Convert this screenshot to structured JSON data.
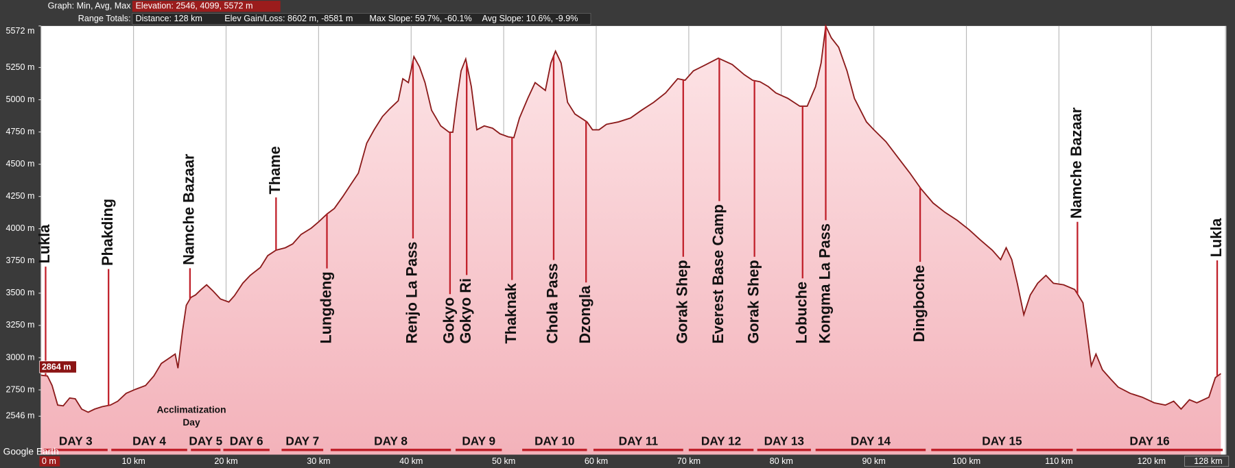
{
  "chart_data": {
    "type": "area",
    "graph_label": "Graph: Min, Avg, Max",
    "stats": "Elevation: 2546, 4099, 5572 m",
    "range_label": "Range Totals:",
    "range_totals": [
      "Distance: 128 km",
      "Elev Gain/Loss: 8602 m, -8581 m",
      "Max Slope: 59.7%, -60.1%",
      "Avg Slope: 10.6%, -9.9%"
    ],
    "readout": "2864 m",
    "watermark": "Google Earth",
    "note": "Acclimatization Day",
    "color": "#8b1a1a",
    "grid": "x",
    "x": [
      0.0,
      0.7,
      1.2,
      1.8,
      2.4,
      3.1,
      3.7,
      4.4,
      5.1,
      5.8,
      6.6,
      7.5,
      8.3,
      9.2,
      10.2,
      11.3,
      12.2,
      13.0,
      13.9,
      14.5,
      14.8,
      15.3,
      15.7,
      16.2,
      16.7,
      17.3,
      17.9,
      18.6,
      19.4,
      20.3,
      20.9,
      21.8,
      22.6,
      23.7,
      24.5,
      25.4,
      26.4,
      27.2,
      28.1,
      29.2,
      30.0,
      30.9,
      31.7,
      32.6,
      33.4,
      34.3,
      35.2,
      36.0,
      36.9,
      37.7,
      38.6,
      39.1,
      39.7,
      40.3,
      40.9,
      41.5,
      42.2,
      43.2,
      44.1,
      44.5,
      44.9,
      45.4,
      45.9,
      46.5,
      47.1,
      47.9,
      48.8,
      49.6,
      50.5,
      51.1,
      51.7,
      52.6,
      53.4,
      54.5,
      55.1,
      55.6,
      56.2,
      56.9,
      57.7,
      59.0,
      59.6,
      60.3,
      61.1,
      62.4,
      63.7,
      64.9,
      66.2,
      67.5,
      68.8,
      69.6,
      70.5,
      71.7,
      73.2,
      74.7,
      76.0,
      76.9,
      77.7,
      78.6,
      79.4,
      80.7,
      82.0,
      82.8,
      83.7,
      84.3,
      84.8,
      85.4,
      86.2,
      87.1,
      87.9,
      89.2,
      90.0,
      91.3,
      92.6,
      93.9,
      95.1,
      96.4,
      97.7,
      99.0,
      100.3,
      101.5,
      102.8,
      103.7,
      104.3,
      104.9,
      105.5,
      106.2,
      106.9,
      107.7,
      108.6,
      109.4,
      110.5,
      111.7,
      112.6,
      113.0,
      113.5,
      114.0,
      114.7,
      115.6,
      116.4,
      117.7,
      119.0,
      120.3,
      121.5,
      122.4,
      123.2,
      124.1,
      124.9,
      126.2,
      126.9,
      127.5
    ],
    "values": [
      2864,
      2858,
      2784,
      2632,
      2626,
      2687,
      2681,
      2601,
      2577,
      2601,
      2620,
      2632,
      2662,
      2723,
      2754,
      2784,
      2858,
      2955,
      2998,
      3028,
      2918,
      3211,
      3406,
      3467,
      3486,
      3528,
      3565,
      3516,
      3455,
      3431,
      3480,
      3577,
      3638,
      3699,
      3791,
      3833,
      3852,
      3882,
      3955,
      4004,
      4053,
      4114,
      4157,
      4248,
      4334,
      4431,
      4663,
      4767,
      4870,
      4931,
      4992,
      5163,
      5133,
      5334,
      5255,
      5133,
      4919,
      4797,
      4748,
      4748,
      4980,
      5224,
      5316,
      5102,
      4767,
      4797,
      4779,
      4736,
      4712,
      4706,
      4858,
      5011,
      5133,
      5072,
      5285,
      5377,
      5285,
      4980,
      4889,
      4828,
      4767,
      4767,
      4809,
      4828,
      4858,
      4919,
      4980,
      5053,
      5163,
      5151,
      5224,
      5267,
      5322,
      5273,
      5194,
      5151,
      5139,
      5102,
      5053,
      5011,
      4950,
      4950,
      5102,
      5285,
      5572,
      5480,
      5407,
      5224,
      5011,
      4828,
      4767,
      4675,
      4553,
      4431,
      4309,
      4199,
      4126,
      4065,
      3992,
      3913,
      3833,
      3760,
      3852,
      3760,
      3577,
      3333,
      3486,
      3577,
      3638,
      3577,
      3565,
      3528,
      3425,
      3211,
      2937,
      3028,
      2906,
      2833,
      2772,
      2723,
      2693,
      2650,
      2632,
      2662,
      2601,
      2674,
      2650,
      2693,
      2845,
      2876
    ],
    "xlim": [
      0,
      128
    ],
    "ylim": [
      2248,
      5572
    ],
    "xticks": [
      {
        "value": 0,
        "label": "0 m"
      },
      {
        "value": 10,
        "label": "10 km"
      },
      {
        "value": 20,
        "label": "20 km"
      },
      {
        "value": 30,
        "label": "30 km"
      },
      {
        "value": 40,
        "label": "40 km"
      },
      {
        "value": 50,
        "label": "50 km"
      },
      {
        "value": 60,
        "label": "60 km"
      },
      {
        "value": 70,
        "label": "70 km"
      },
      {
        "value": 80,
        "label": "80 km"
      },
      {
        "value": 90,
        "label": "90 km"
      },
      {
        "value": 100,
        "label": "100 km"
      },
      {
        "value": 110,
        "label": "110 km"
      },
      {
        "value": 120,
        "label": "120 km"
      },
      {
        "value": 128,
        "label": "128 km"
      }
    ],
    "yticks": [
      {
        "value": 2546,
        "label": "2546 m"
      },
      {
        "value": 2750,
        "label": "2750 m"
      },
      {
        "value": 3000,
        "label": "3000 m"
      },
      {
        "value": 3250,
        "label": "3250 m"
      },
      {
        "value": 3500,
        "label": "3500 m"
      },
      {
        "value": 3750,
        "label": "3750 m"
      },
      {
        "value": 4000,
        "label": "4000 m"
      },
      {
        "value": 4250,
        "label": "4250 m"
      },
      {
        "value": 4500,
        "label": "4500 m"
      },
      {
        "value": 4750,
        "label": "4750 m"
      },
      {
        "value": 5000,
        "label": "5000 m"
      },
      {
        "value": 5250,
        "label": "5250 m"
      },
      {
        "value": 5572,
        "label": "5572 m"
      }
    ],
    "annotations": [
      {
        "text": "Lukla",
        "x": 0.5
      },
      {
        "text": "Phakding",
        "x": 7.3
      },
      {
        "text": "Namche Bazaar",
        "x": 16.1
      },
      {
        "text": "Thame",
        "x": 25.4
      },
      {
        "text": "Lungdeng",
        "x": 30.9
      },
      {
        "text": "Renjo La Pass",
        "x": 40.2
      },
      {
        "text": "Gokyo",
        "x": 44.2
      },
      {
        "text": "Gokyo Ri",
        "x": 46.0
      },
      {
        "text": "Thaknak",
        "x": 50.9
      },
      {
        "text": "Chola Pass",
        "x": 55.4
      },
      {
        "text": "Dzongla",
        "x": 58.9
      },
      {
        "text": "Gorak Shep",
        "x": 69.4
      },
      {
        "text": "Everest Base Camp",
        "x": 73.3
      },
      {
        "text": "Gorak Shep",
        "x": 77.1
      },
      {
        "text": "Lobuche",
        "x": 82.3
      },
      {
        "text": "Kongma La Pass",
        "x": 84.8
      },
      {
        "text": "Dingboche",
        "x": 95.0
      },
      {
        "text": "Namche Bazaar",
        "x": 112.0
      },
      {
        "text": "Lukla",
        "x": 127.1
      }
    ],
    "days": [
      {
        "label": "DAY 3",
        "start": 0.3,
        "end": 7.2
      },
      {
        "label": "DAY 4",
        "start": 7.6,
        "end": 15.8
      },
      {
        "label": "DAY 5",
        "start": 16.2,
        "end": 19.4
      },
      {
        "label": "DAY 6",
        "start": 19.7,
        "end": 24.7
      },
      {
        "label": "DAY 7",
        "start": 26.0,
        "end": 30.5
      },
      {
        "label": "DAY 8",
        "start": 31.3,
        "end": 44.3
      },
      {
        "label": "DAY 9",
        "start": 44.8,
        "end": 49.8
      },
      {
        "label": "DAY 10",
        "start": 52.0,
        "end": 59.0
      },
      {
        "label": "DAY 11",
        "start": 59.7,
        "end": 69.4
      },
      {
        "label": "DAY 12",
        "start": 70.0,
        "end": 77.0
      },
      {
        "label": "DAY 13",
        "start": 77.4,
        "end": 83.2
      },
      {
        "label": "DAY 14",
        "start": 83.7,
        "end": 95.6
      },
      {
        "label": "DAY 15",
        "start": 96.2,
        "end": 111.5
      },
      {
        "label": "DAY 16",
        "start": 111.9,
        "end": 127.7
      }
    ]
  }
}
